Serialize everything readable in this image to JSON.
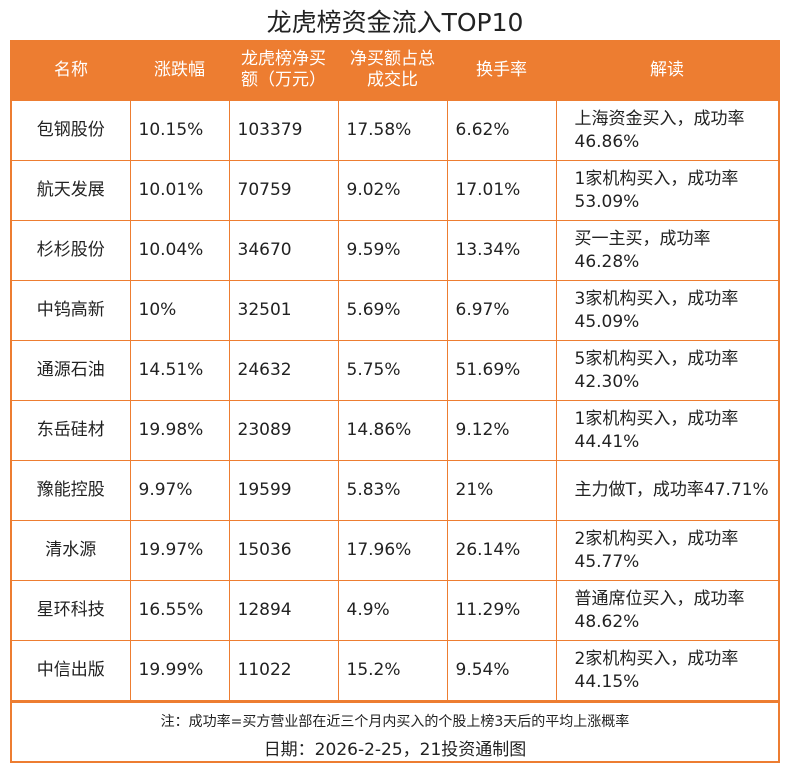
{
  "title": "龙虎榜资金流入TOP10",
  "headers": [
    "名称",
    "涨跌幅",
    "龙虎榜净买额（万元）",
    "净买额占总成交比",
    "换手率",
    "解读"
  ],
  "rows": [
    [
      "包钢股份",
      "10.15%",
      "103379",
      "17.58%",
      "6.62%",
      "上海资金买入，成功率46.86%"
    ],
    [
      "航天发展",
      "10.01%",
      "70759",
      "9.02%",
      "17.01%",
      "1家机构买入，成功率53.09%"
    ],
    [
      "杉杉股份",
      "10.04%",
      "34670",
      "9.59%",
      "13.34%",
      "买一主买，成功率46.28%"
    ],
    [
      "中钨高新",
      "10%",
      "32501",
      "5.69%",
      "6.97%",
      "3家机构买入，成功率45.09%"
    ],
    [
      "通源石油",
      "14.51%",
      "24632",
      "5.75%",
      "51.69%",
      "5家机构买入，成功率42.30%"
    ],
    [
      "东岳硅材",
      "19.98%",
      "23089",
      "14.86%",
      "9.12%",
      "1家机构买入，成功率44.41%"
    ],
    [
      "豫能控股",
      "9.97%",
      "19599",
      "5.83%",
      "21%",
      "主力做T，成功率47.71%"
    ],
    [
      "清水源",
      "19.97%",
      "15036",
      "17.96%",
      "26.14%",
      "2家机构买入，成功率45.77%"
    ],
    [
      "星环科技",
      "16.55%",
      "12894",
      "4.9%",
      "11.29%",
      "普通席位买入，成功率48.62%"
    ],
    [
      "中信出版",
      "19.99%",
      "11022",
      "15.2%",
      "9.54%",
      "2家机构买入，成功率44.15%"
    ]
  ],
  "note": "注：成功率=买方营业部在近三个月内买入的个股上榜3天后的平均上涨概率",
  "date": "日期：2026-2-25，21投资通制图",
  "colors": {
    "accent": "#ED7D31"
  }
}
